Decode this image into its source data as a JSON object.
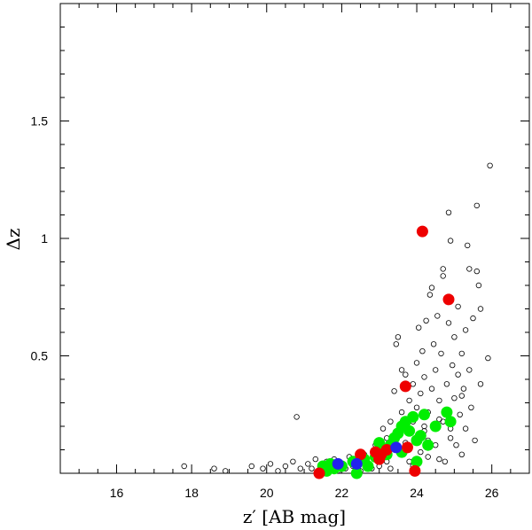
{
  "chart_data": {
    "type": "scatter",
    "xlabel": "z′  [AB mag]",
    "ylabel": "Δz",
    "xlim": [
      14.5,
      27.0
    ],
    "ylim": [
      0.0,
      2.0
    ],
    "x_ticks": [
      16,
      18,
      20,
      22,
      24,
      26
    ],
    "x_tick_labels": [
      "16",
      "18",
      "20",
      "22",
      "24",
      "26"
    ],
    "y_ticks": [
      0.5,
      1.0,
      1.5
    ],
    "y_tick_labels": [
      "0.5",
      "1",
      "1.5"
    ],
    "grid": false,
    "series": [
      {
        "color": "#000000",
        "marker": "open-circle",
        "points": [
          [
            17.8,
            0.03
          ],
          [
            18.6,
            0.02
          ],
          [
            18.9,
            0.01
          ],
          [
            19.6,
            0.03
          ],
          [
            19.9,
            0.02
          ],
          [
            20.1,
            0.04
          ],
          [
            20.3,
            0.01
          ],
          [
            20.5,
            0.03
          ],
          [
            20.7,
            0.05
          ],
          [
            20.8,
            0.24
          ],
          [
            20.9,
            0.02
          ],
          [
            21.1,
            0.04
          ],
          [
            21.2,
            0.02
          ],
          [
            21.3,
            0.06
          ],
          [
            21.4,
            0.01
          ],
          [
            21.5,
            0.03
          ],
          [
            21.6,
            0.05
          ],
          [
            21.7,
            0.02
          ],
          [
            21.8,
            0.06
          ],
          [
            21.9,
            0.01
          ],
          [
            22.0,
            0.04
          ],
          [
            22.1,
            0.02
          ],
          [
            22.2,
            0.07
          ],
          [
            22.3,
            0.03
          ],
          [
            22.4,
            0.05
          ],
          [
            22.5,
            0.01
          ],
          [
            22.6,
            0.08
          ],
          [
            22.7,
            0.04
          ],
          [
            22.8,
            0.02
          ],
          [
            22.9,
            0.06
          ],
          [
            23.0,
            0.12
          ],
          [
            23.0,
            0.03
          ],
          [
            23.1,
            0.09
          ],
          [
            23.2,
            0.05
          ],
          [
            23.2,
            0.15
          ],
          [
            23.3,
            0.02
          ],
          [
            23.3,
            0.22
          ],
          [
            23.4,
            0.11
          ],
          [
            23.4,
            0.35
          ],
          [
            23.45,
            0.55
          ],
          [
            23.5,
            0.58
          ],
          [
            23.5,
            0.18
          ],
          [
            23.6,
            0.08
          ],
          [
            23.6,
            0.26
          ],
          [
            23.7,
            0.42
          ],
          [
            23.7,
            0.13
          ],
          [
            23.8,
            0.31
          ],
          [
            23.8,
            0.05
          ],
          [
            23.9,
            0.22
          ],
          [
            23.9,
            0.38
          ],
          [
            24.0,
            0.47
          ],
          [
            24.0,
            0.15
          ],
          [
            24.0,
            0.28
          ],
          [
            24.05,
            0.62
          ],
          [
            24.1,
            0.09
          ],
          [
            24.1,
            0.34
          ],
          [
            24.15,
            0.52
          ],
          [
            24.2,
            0.18
          ],
          [
            24.2,
            0.41
          ],
          [
            24.25,
            0.65
          ],
          [
            24.3,
            0.26
          ],
          [
            24.3,
            0.07
          ],
          [
            24.35,
            0.76
          ],
          [
            24.4,
            0.79
          ],
          [
            24.4,
            0.36
          ],
          [
            24.45,
            0.55
          ],
          [
            24.5,
            0.12
          ],
          [
            24.5,
            0.44
          ],
          [
            24.55,
            0.67
          ],
          [
            24.6,
            0.23
          ],
          [
            24.6,
            0.31
          ],
          [
            24.65,
            0.51
          ],
          [
            24.7,
            0.84
          ],
          [
            24.7,
            0.87
          ],
          [
            24.75,
            0.05
          ],
          [
            24.8,
            0.38
          ],
          [
            24.8,
            0.27
          ],
          [
            24.85,
            1.11
          ],
          [
            24.85,
            0.64
          ],
          [
            24.9,
            0.99
          ],
          [
            24.9,
            0.19
          ],
          [
            24.95,
            0.46
          ],
          [
            25.0,
            0.58
          ],
          [
            25.0,
            0.32
          ],
          [
            25.05,
            0.12
          ],
          [
            25.1,
            0.71
          ],
          [
            25.1,
            0.42
          ],
          [
            25.15,
            0.25
          ],
          [
            25.2,
            0.51
          ],
          [
            25.2,
            0.08
          ],
          [
            25.25,
            0.36
          ],
          [
            25.3,
            0.61
          ],
          [
            25.3,
            0.19
          ],
          [
            25.35,
            0.97
          ],
          [
            25.4,
            0.87
          ],
          [
            25.4,
            0.44
          ],
          [
            25.45,
            0.28
          ],
          [
            25.5,
            0.66
          ],
          [
            25.55,
            0.14
          ],
          [
            25.6,
            1.14
          ],
          [
            25.6,
            0.86
          ],
          [
            25.65,
            0.8
          ],
          [
            25.7,
            0.38
          ],
          [
            25.7,
            0.7
          ],
          [
            25.9,
            0.49
          ],
          [
            25.95,
            1.31
          ],
          [
            22.9,
            0.12
          ],
          [
            23.1,
            0.19
          ],
          [
            23.6,
            0.44
          ],
          [
            24.2,
            0.2
          ],
          [
            24.6,
            0.06
          ],
          [
            24.9,
            0.15
          ],
          [
            25.2,
            0.33
          ],
          [
            23.9,
            0.03
          ],
          [
            24.3,
            0.14
          ],
          [
            24.7,
            0.22
          ]
        ]
      },
      {
        "color": "#00ee00",
        "marker": "filled-circle",
        "points": [
          [
            21.5,
            0.03
          ],
          [
            21.6,
            0.01
          ],
          [
            21.7,
            0.04
          ],
          [
            21.8,
            0.02
          ],
          [
            22.0,
            0.03
          ],
          [
            22.3,
            0.05
          ],
          [
            22.4,
            0.0
          ],
          [
            22.6,
            0.06
          ],
          [
            22.7,
            0.03
          ],
          [
            22.9,
            0.07
          ],
          [
            23.0,
            0.13
          ],
          [
            23.1,
            0.1
          ],
          [
            23.2,
            0.08
          ],
          [
            23.3,
            0.12
          ],
          [
            23.4,
            0.15
          ],
          [
            23.5,
            0.17
          ],
          [
            23.6,
            0.2
          ],
          [
            23.7,
            0.22
          ],
          [
            23.8,
            0.18
          ],
          [
            23.9,
            0.24
          ],
          [
            24.0,
            0.14
          ],
          [
            24.1,
            0.16
          ],
          [
            24.2,
            0.25
          ],
          [
            24.3,
            0.12
          ],
          [
            24.5,
            0.2
          ],
          [
            24.8,
            0.26
          ],
          [
            24.9,
            0.22
          ],
          [
            23.6,
            0.09
          ],
          [
            24.0,
            0.05
          ]
        ]
      },
      {
        "color": "#ee0000",
        "marker": "filled-circle",
        "points": [
          [
            21.4,
            0.0
          ],
          [
            22.5,
            0.08
          ],
          [
            22.9,
            0.09
          ],
          [
            23.0,
            0.06
          ],
          [
            23.05,
            0.08
          ],
          [
            23.2,
            0.1
          ],
          [
            23.75,
            0.11
          ],
          [
            23.7,
            0.37
          ],
          [
            23.95,
            0.01
          ],
          [
            24.15,
            1.03
          ],
          [
            24.85,
            0.74
          ]
        ]
      },
      {
        "color": "#2222ee",
        "marker": "filled-circle",
        "points": [
          [
            21.9,
            0.04
          ],
          [
            22.4,
            0.04
          ],
          [
            23.45,
            0.11
          ]
        ]
      }
    ]
  }
}
